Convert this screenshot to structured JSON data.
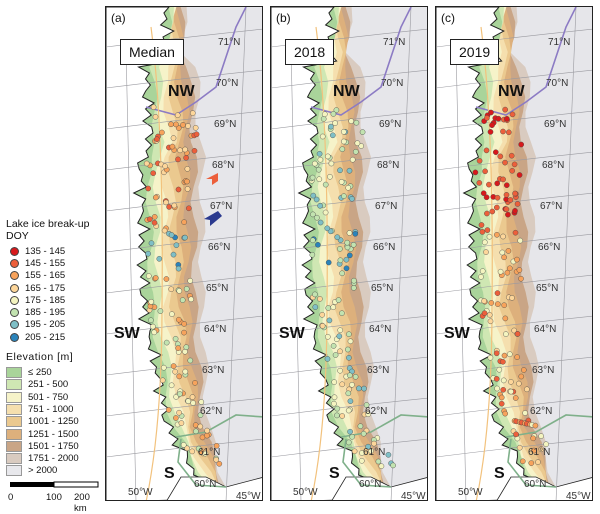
{
  "panels": [
    {
      "letter": "(a)",
      "title": "Median",
      "pattern": "median"
    },
    {
      "letter": "(b)",
      "title": "2018",
      "pattern": "y2018"
    },
    {
      "letter": "(c)",
      "title": "2019",
      "pattern": "y2019"
    }
  ],
  "regions": {
    "nw": "NW",
    "sw": "SW",
    "s": "S"
  },
  "latitudes": [
    "71°N",
    "70°N",
    "69°N",
    "68°N",
    "67°N",
    "66°N",
    "65°N",
    "64°N",
    "63°N",
    "62°N",
    "61°N"
  ],
  "longitudes": [
    "50°W",
    "60°N",
    "45°W"
  ],
  "legend": {
    "title": "Lake ice break-up DOY",
    "classes": [
      {
        "label": "135 - 145",
        "color": "#d7191c"
      },
      {
        "label": "145 - 155",
        "color": "#ec5f3b"
      },
      {
        "label": "155 - 165",
        "color": "#f7a35c"
      },
      {
        "label": "165 - 175",
        "color": "#fdd69a"
      },
      {
        "label": "175 - 185",
        "color": "#f4f4c0"
      },
      {
        "label": "185 - 195",
        "color": "#c2e3b0"
      },
      {
        "label": "195 - 205",
        "color": "#7fbfc6"
      },
      {
        "label": "205 - 215",
        "color": "#2b83ba"
      }
    ],
    "elevation_title": "Elevation [m]",
    "elevation_classes": [
      {
        "label": "≤ 250",
        "color": "#a9d49a"
      },
      {
        "label": "251 - 500",
        "color": "#cfe7b3"
      },
      {
        "label": "501 - 750",
        "color": "#f6f3c9"
      },
      {
        "label": "751 - 1000",
        "color": "#f5dfae"
      },
      {
        "label": "1001 - 1250",
        "color": "#ebc98f"
      },
      {
        "label": "1251 - 1500",
        "color": "#ddb07c"
      },
      {
        "label": "1501 - 1750",
        "color": "#c9a586"
      },
      {
        "label": "1751 - 2000",
        "color": "#d9cbc0"
      },
      {
        "label": "> 2000",
        "color": "#e8e8ec"
      }
    ]
  },
  "scale": {
    "zero": "0",
    "mid": "100",
    "end": "200 km"
  }
}
